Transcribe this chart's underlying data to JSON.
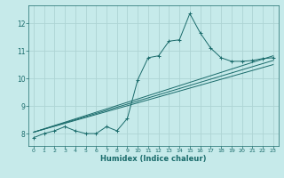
{
  "xlabel": "Humidex (Indice chaleur)",
  "background_color": "#c6eaea",
  "grid_color": "#aed4d4",
  "line_color": "#1a6b6b",
  "xlim": [
    -0.5,
    23.5
  ],
  "ylim": [
    7.55,
    12.65
  ],
  "yticks": [
    8,
    9,
    10,
    11,
    12
  ],
  "xticks": [
    0,
    1,
    2,
    3,
    4,
    5,
    6,
    7,
    8,
    9,
    10,
    11,
    12,
    13,
    14,
    15,
    16,
    17,
    18,
    19,
    20,
    21,
    22,
    23
  ],
  "main_line_x": [
    0,
    1,
    2,
    3,
    4,
    5,
    6,
    7,
    8,
    9,
    10,
    11,
    12,
    13,
    14,
    15,
    16,
    17,
    18,
    19,
    20,
    21,
    22,
    23
  ],
  "main_line_y": [
    7.85,
    8.0,
    8.1,
    8.25,
    8.1,
    8.0,
    8.0,
    8.25,
    8.1,
    8.55,
    9.95,
    10.75,
    10.82,
    11.35,
    11.4,
    12.35,
    11.65,
    11.1,
    10.75,
    10.62,
    10.62,
    10.65,
    10.72,
    10.75
  ],
  "reg_lines": [
    {
      "x": [
        0,
        23
      ],
      "y": [
        8.05,
        10.5
      ]
    },
    {
      "x": [
        0,
        23
      ],
      "y": [
        8.05,
        10.65
      ]
    },
    {
      "x": [
        0,
        23
      ],
      "y": [
        8.05,
        10.82
      ]
    }
  ]
}
